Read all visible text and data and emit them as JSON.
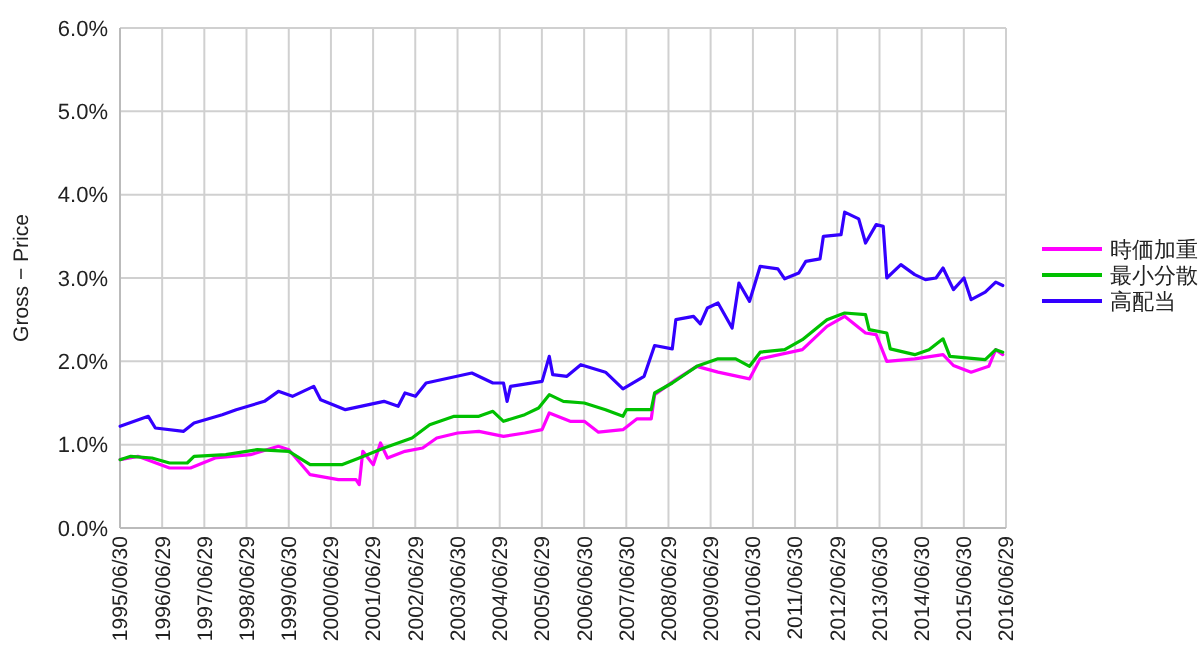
{
  "chart_data": {
    "type": "line",
    "ylabel": "Gross − Price",
    "xlim": [
      "1995-06-30",
      "2016-06-29"
    ],
    "xticks": [
      {
        "value": "1995-06-30",
        "label": "1995/06/30"
      },
      {
        "value": "1996-06-29",
        "label": "1996/06/29"
      },
      {
        "value": "1997-06-29",
        "label": "1997/06/29"
      },
      {
        "value": "1998-06-29",
        "label": "1998/06/29"
      },
      {
        "value": "1999-06-30",
        "label": "1999/06/30"
      },
      {
        "value": "2000-06-29",
        "label": "2000/06/29"
      },
      {
        "value": "2001-06-29",
        "label": "2001/06/29"
      },
      {
        "value": "2002-06-29",
        "label": "2002/06/29"
      },
      {
        "value": "2003-06-30",
        "label": "2003/06/30"
      },
      {
        "value": "2004-06-29",
        "label": "2004/06/29"
      },
      {
        "value": "2005-06-29",
        "label": "2005/06/29"
      },
      {
        "value": "2006-06-30",
        "label": "2006/06/30"
      },
      {
        "value": "2007-06-30",
        "label": "2007/06/30"
      },
      {
        "value": "2008-06-29",
        "label": "2008/06/29"
      },
      {
        "value": "2009-06-29",
        "label": "2009/06/29"
      },
      {
        "value": "2010-06-30",
        "label": "2010/06/30"
      },
      {
        "value": "2011-06-30",
        "label": "2011/06/30"
      },
      {
        "value": "2012-06-29",
        "label": "2012/06/29"
      },
      {
        "value": "2013-06-30",
        "label": "2013/06/30"
      },
      {
        "value": "2014-06-30",
        "label": "2014/06/30"
      },
      {
        "value": "2015-06-30",
        "label": "2015/06/30"
      },
      {
        "value": "2016-06-29",
        "label": "2016/06/29"
      }
    ],
    "ylim": [
      0,
      6
    ],
    "yticks": [
      {
        "value": 0,
        "label": "0.0%"
      },
      {
        "value": 1,
        "label": "1.0%"
      },
      {
        "value": 2,
        "label": "2.0%"
      },
      {
        "value": 3,
        "label": "3.0%"
      },
      {
        "value": 4,
        "label": "4.0%"
      },
      {
        "value": 5,
        "label": "5.0%"
      },
      {
        "value": 6,
        "label": "6.0%"
      }
    ],
    "grid": true,
    "legend": "right",
    "marker": "none",
    "line_style": "solid",
    "series": [
      {
        "name": "時価加重",
        "color": "#ff00ff",
        "x": [
          "1995-07",
          "1995-12",
          "1996-09",
          "1997-03",
          "1997-10",
          "1998-08",
          "1999-04",
          "1999-07",
          "2000-01",
          "2000-09",
          "2001-02",
          "2001-03",
          "2001-04",
          "2001-07",
          "2001-09",
          "2001-11",
          "2002-04",
          "2002-09",
          "2003-01",
          "2003-07",
          "2004-01",
          "2004-08",
          "2005-02",
          "2005-07",
          "2005-09",
          "2006-03",
          "2006-07",
          "2006-11",
          "2007-06",
          "2007-10",
          "2008-02",
          "2008-03",
          "2008-09",
          "2009-03",
          "2009-09",
          "2010-06",
          "2010-09",
          "2011-09",
          "2012-04",
          "2012-09",
          "2013-03",
          "2013-06",
          "2013-09",
          "2014-05",
          "2015-01",
          "2015-04",
          "2015-09",
          "2016-02",
          "2016-04",
          "2016-06"
        ],
        "values": [
          0.82,
          0.86,
          0.72,
          0.72,
          0.84,
          0.88,
          0.98,
          0.94,
          0.64,
          0.58,
          0.58,
          0.52,
          0.92,
          0.76,
          1.02,
          0.84,
          0.92,
          0.96,
          1.08,
          1.14,
          1.16,
          1.1,
          1.14,
          1.18,
          1.38,
          1.28,
          1.28,
          1.15,
          1.18,
          1.31,
          1.31,
          1.6,
          1.78,
          1.94,
          1.87,
          1.79,
          2.03,
          2.14,
          2.42,
          2.54,
          2.34,
          2.32,
          2.0,
          2.03,
          2.08,
          1.95,
          1.87,
          1.94,
          2.14,
          2.08
        ]
      },
      {
        "name": "最小分散",
        "color": "#00c000",
        "x": [
          "1995-07",
          "1995-10",
          "1996-04",
          "1996-09",
          "1997-02",
          "1997-04",
          "1998-01",
          "1998-10",
          "1999-07",
          "2000-01",
          "2000-10",
          "2001-03",
          "2001-10",
          "2002-06",
          "2002-11",
          "2003-06",
          "2004-01",
          "2004-05",
          "2004-08",
          "2005-02",
          "2005-06",
          "2005-09",
          "2006-01",
          "2006-07",
          "2007-01",
          "2007-06",
          "2007-07",
          "2008-02",
          "2008-03",
          "2008-08",
          "2009-03",
          "2009-09",
          "2010-02",
          "2010-06",
          "2010-09",
          "2011-04",
          "2011-09",
          "2012-04",
          "2012-09",
          "2013-03",
          "2013-04",
          "2013-09",
          "2013-10",
          "2014-05",
          "2014-09",
          "2015-01",
          "2015-03",
          "2016-01",
          "2016-04",
          "2016-06"
        ],
        "values": [
          0.82,
          0.86,
          0.84,
          0.78,
          0.78,
          0.86,
          0.88,
          0.94,
          0.92,
          0.76,
          0.76,
          0.84,
          0.96,
          1.08,
          1.24,
          1.34,
          1.34,
          1.4,
          1.28,
          1.36,
          1.44,
          1.6,
          1.52,
          1.5,
          1.42,
          1.34,
          1.42,
          1.42,
          1.62,
          1.74,
          1.94,
          2.03,
          2.03,
          1.94,
          2.11,
          2.14,
          2.26,
          2.5,
          2.58,
          2.56,
          2.38,
          2.34,
          2.15,
          2.08,
          2.14,
          2.27,
          2.06,
          2.02,
          2.14,
          2.11
        ]
      },
      {
        "name": "高配当",
        "color": "#3300ff",
        "x": [
          "1995-07",
          "1996-03",
          "1996-05",
          "1997-01",
          "1997-04",
          "1997-12",
          "1998-04",
          "1998-12",
          "1999-04",
          "1999-08",
          "2000-02",
          "2000-04",
          "2000-11",
          "2001-10",
          "2002-02",
          "2002-04",
          "2002-07",
          "2002-10",
          "2003-11",
          "2004-05",
          "2004-08",
          "2004-09",
          "2004-10",
          "2005-07",
          "2005-09",
          "2005-10",
          "2006-02",
          "2006-06",
          "2007-01",
          "2007-06",
          "2007-12",
          "2008-03",
          "2008-08",
          "2008-09",
          "2009-02",
          "2009-04",
          "2009-06",
          "2009-09",
          "2010-01",
          "2010-03",
          "2010-06",
          "2010-09",
          "2011-02",
          "2011-04",
          "2011-08",
          "2011-10",
          "2012-02",
          "2012-03",
          "2012-08",
          "2012-09",
          "2013-01",
          "2013-03",
          "2013-06",
          "2013-08",
          "2013-09",
          "2014-01",
          "2014-05",
          "2014-08",
          "2014-11",
          "2015-01",
          "2015-04",
          "2015-07",
          "2015-09",
          "2016-01",
          "2016-04",
          "2016-06"
        ],
        "values": [
          1.22,
          1.34,
          1.2,
          1.16,
          1.26,
          1.36,
          1.42,
          1.52,
          1.64,
          1.58,
          1.7,
          1.54,
          1.42,
          1.52,
          1.46,
          1.62,
          1.58,
          1.74,
          1.86,
          1.74,
          1.74,
          1.52,
          1.7,
          1.76,
          2.06,
          1.84,
          1.82,
          1.96,
          1.87,
          1.67,
          1.82,
          2.19,
          2.15,
          2.5,
          2.54,
          2.45,
          2.64,
          2.7,
          2.4,
          2.94,
          2.72,
          3.14,
          3.11,
          2.99,
          3.06,
          3.2,
          3.23,
          3.5,
          3.52,
          3.79,
          3.71,
          3.42,
          3.64,
          3.62,
          3.0,
          3.16,
          3.04,
          2.98,
          3.0,
          3.12,
          2.86,
          3.0,
          2.74,
          2.83,
          2.95,
          2.91
        ]
      }
    ]
  }
}
